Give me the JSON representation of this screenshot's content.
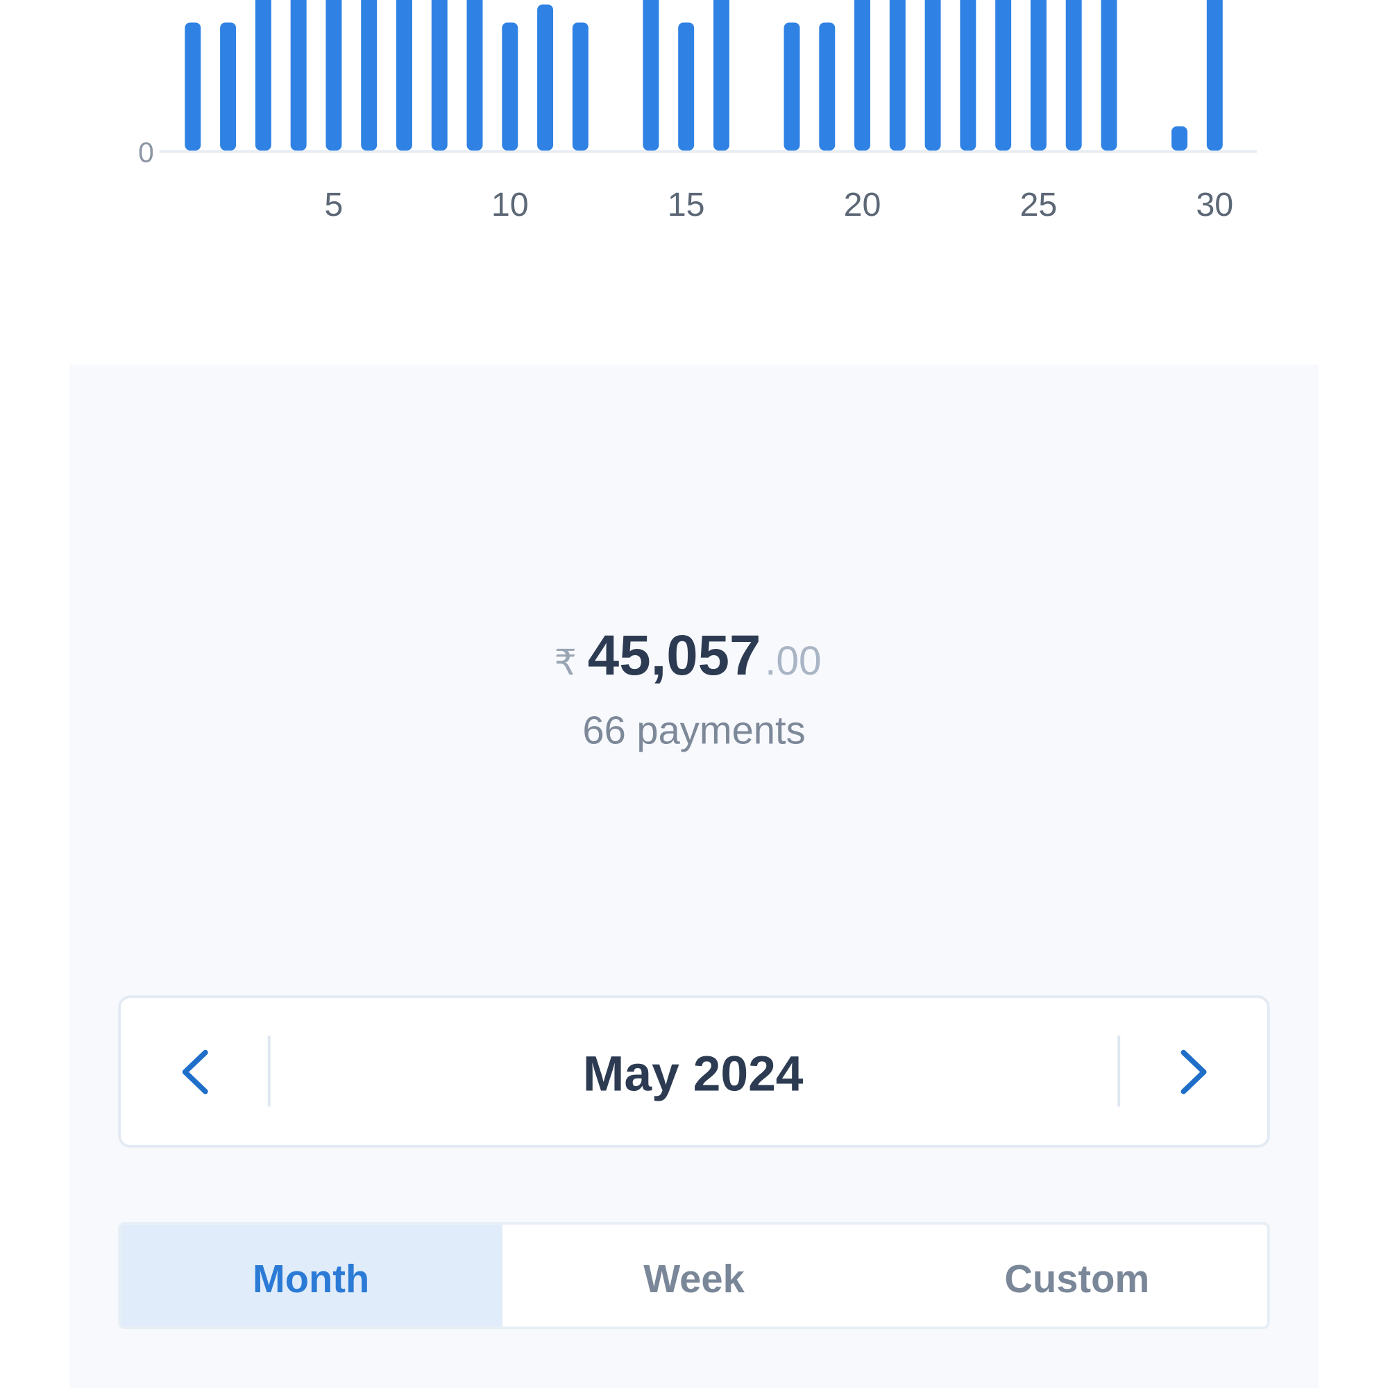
{
  "chart_data": {
    "type": "bar",
    "x": [
      1,
      2,
      3,
      4,
      5,
      6,
      7,
      8,
      9,
      10,
      11,
      12,
      13,
      14,
      15,
      16,
      17,
      18,
      19,
      20,
      21,
      22,
      23,
      24,
      25,
      26,
      27,
      28,
      29,
      30,
      31
    ],
    "values": [
      85,
      85,
      100,
      100,
      100,
      100,
      100,
      100,
      100,
      85,
      97,
      85,
      0,
      100,
      85,
      100,
      0,
      85,
      85,
      100,
      100,
      100,
      100,
      100,
      100,
      100,
      100,
      0,
      16,
      100,
      0
    ],
    "color": "#2f82e4",
    "xlim": [
      0.05,
      31.2
    ],
    "xticks": [
      5,
      10,
      15,
      20,
      25,
      30
    ],
    "ylim": [
      0,
      100
    ],
    "yticks": [
      0
    ]
  },
  "summary": {
    "currency": "₹",
    "amount": "45,057",
    "decimals": ".00",
    "count_label": "66 payments"
  },
  "period": {
    "label": "May 2024"
  },
  "tabs": {
    "items": [
      "Month",
      "Week",
      "Custom"
    ],
    "active": 0
  }
}
